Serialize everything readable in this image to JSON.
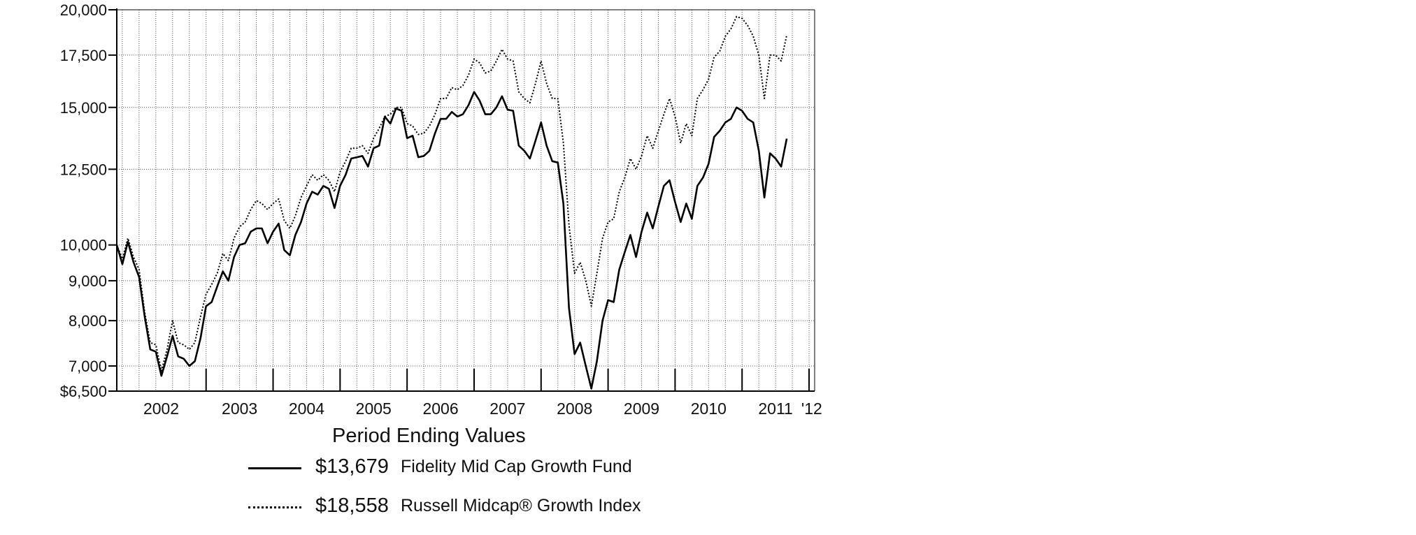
{
  "chart_data": {
    "type": "line",
    "title": "",
    "xlabel": "",
    "ylabel": "",
    "yscale": "log",
    "ylim": [
      6500,
      20000
    ],
    "y_ticks": [
      {
        "value": 20000,
        "label": "20,000"
      },
      {
        "value": 17500,
        "label": "17,500"
      },
      {
        "value": 15000,
        "label": "15,000"
      },
      {
        "value": 12500,
        "label": "12,500"
      },
      {
        "value": 10000,
        "label": "10,000"
      },
      {
        "value": 9000,
        "label": "9,000"
      },
      {
        "value": 8000,
        "label": "8,000"
      },
      {
        "value": 7000,
        "label": "7,000"
      },
      {
        "value": 6500,
        "label": "$6,500"
      }
    ],
    "x_start": 2001.667,
    "x_end": 2012.083,
    "year_boundaries": [
      2003,
      2004,
      2005,
      2006,
      2007,
      2008,
      2009,
      2010,
      2011,
      2012
    ],
    "year_labels": [
      {
        "x": 2002.33,
        "label": "2002"
      },
      {
        "x": 2003.5,
        "label": "2003"
      },
      {
        "x": 2004.5,
        "label": "2004"
      },
      {
        "x": 2005.5,
        "label": "2005"
      },
      {
        "x": 2006.5,
        "label": "2006"
      },
      {
        "x": 2007.5,
        "label": "2007"
      },
      {
        "x": 2008.5,
        "label": "2008"
      },
      {
        "x": 2009.5,
        "label": "2009"
      },
      {
        "x": 2010.5,
        "label": "2010"
      },
      {
        "x": 2011.5,
        "label": "2011"
      },
      {
        "x": 2012.04,
        "label": "'12"
      }
    ],
    "grid": true,
    "legend_position": "below",
    "legend_title": "Period Ending Values",
    "series": [
      {
        "name": "Fidelity Mid Cap Growth Fund",
        "value_label": "$13,679",
        "style": "solid",
        "color": "#000000",
        "points": [
          [
            2001.667,
            10000
          ],
          [
            2001.75,
            9450
          ],
          [
            2001.833,
            10100
          ],
          [
            2001.917,
            9500
          ],
          [
            2002.0,
            9100
          ],
          [
            2002.083,
            8100
          ],
          [
            2002.167,
            7350
          ],
          [
            2002.25,
            7300
          ],
          [
            2002.333,
            6800
          ],
          [
            2002.417,
            7200
          ],
          [
            2002.5,
            7650
          ],
          [
            2002.583,
            7200
          ],
          [
            2002.667,
            7150
          ],
          [
            2002.75,
            7000
          ],
          [
            2002.833,
            7100
          ],
          [
            2002.917,
            7600
          ],
          [
            2003.0,
            8350
          ],
          [
            2003.083,
            8450
          ],
          [
            2003.167,
            8850
          ],
          [
            2003.25,
            9250
          ],
          [
            2003.333,
            9000
          ],
          [
            2003.417,
            9650
          ],
          [
            2003.5,
            10000
          ],
          [
            2003.583,
            10050
          ],
          [
            2003.667,
            10400
          ],
          [
            2003.75,
            10500
          ],
          [
            2003.833,
            10500
          ],
          [
            2003.917,
            10050
          ],
          [
            2004.0,
            10400
          ],
          [
            2004.083,
            10650
          ],
          [
            2004.167,
            9850
          ],
          [
            2004.25,
            9700
          ],
          [
            2004.333,
            10300
          ],
          [
            2004.417,
            10700
          ],
          [
            2004.5,
            11300
          ],
          [
            2004.583,
            11700
          ],
          [
            2004.667,
            11600
          ],
          [
            2004.75,
            11900
          ],
          [
            2004.833,
            11800
          ],
          [
            2004.917,
            11150
          ],
          [
            2005.0,
            11900
          ],
          [
            2005.083,
            12300
          ],
          [
            2005.167,
            12900
          ],
          [
            2005.25,
            12950
          ],
          [
            2005.333,
            13000
          ],
          [
            2005.417,
            12600
          ],
          [
            2005.5,
            13300
          ],
          [
            2005.583,
            13400
          ],
          [
            2005.667,
            14600
          ],
          [
            2005.75,
            14300
          ],
          [
            2005.833,
            14950
          ],
          [
            2005.917,
            14850
          ],
          [
            2006.0,
            13700
          ],
          [
            2006.083,
            13800
          ],
          [
            2006.167,
            12950
          ],
          [
            2006.25,
            13000
          ],
          [
            2006.333,
            13200
          ],
          [
            2006.417,
            13900
          ],
          [
            2006.5,
            14500
          ],
          [
            2006.583,
            14500
          ],
          [
            2006.667,
            14800
          ],
          [
            2006.75,
            14600
          ],
          [
            2006.833,
            14700
          ],
          [
            2006.917,
            15100
          ],
          [
            2007.0,
            15700
          ],
          [
            2007.083,
            15300
          ],
          [
            2007.167,
            14700
          ],
          [
            2007.25,
            14700
          ],
          [
            2007.333,
            15000
          ],
          [
            2007.417,
            15500
          ],
          [
            2007.5,
            14900
          ],
          [
            2007.583,
            14850
          ],
          [
            2007.667,
            13400
          ],
          [
            2007.75,
            13200
          ],
          [
            2007.833,
            12900
          ],
          [
            2007.917,
            13600
          ],
          [
            2008.0,
            14350
          ],
          [
            2008.083,
            13400
          ],
          [
            2008.167,
            12800
          ],
          [
            2008.25,
            12750
          ],
          [
            2008.333,
            11300
          ],
          [
            2008.417,
            8300
          ],
          [
            2008.5,
            7250
          ],
          [
            2008.583,
            7500
          ],
          [
            2008.667,
            7000
          ],
          [
            2008.75,
            6550
          ],
          [
            2008.833,
            7100
          ],
          [
            2008.917,
            8000
          ],
          [
            2009.0,
            8500
          ],
          [
            2009.083,
            8450
          ],
          [
            2009.167,
            9300
          ],
          [
            2009.25,
            9800
          ],
          [
            2009.333,
            10300
          ],
          [
            2009.417,
            9650
          ],
          [
            2009.5,
            10400
          ],
          [
            2009.583,
            11000
          ],
          [
            2009.667,
            10500
          ],
          [
            2009.75,
            11200
          ],
          [
            2009.833,
            11900
          ],
          [
            2009.917,
            12100
          ],
          [
            2010.0,
            11350
          ],
          [
            2010.083,
            10700
          ],
          [
            2010.167,
            11300
          ],
          [
            2010.25,
            10800
          ],
          [
            2010.333,
            11900
          ],
          [
            2010.417,
            12200
          ],
          [
            2010.5,
            12700
          ],
          [
            2010.583,
            13750
          ],
          [
            2010.667,
            14000
          ],
          [
            2010.75,
            14350
          ],
          [
            2010.833,
            14500
          ],
          [
            2010.917,
            15000
          ],
          [
            2011.0,
            14850
          ],
          [
            2011.083,
            14500
          ],
          [
            2011.167,
            14350
          ],
          [
            2011.25,
            13200
          ],
          [
            2011.333,
            11500
          ],
          [
            2011.417,
            13100
          ],
          [
            2011.5,
            12900
          ],
          [
            2011.583,
            12600
          ],
          [
            2011.667,
            13679
          ]
        ]
      },
      {
        "name": "Russell Midcap® Growth Index",
        "value_label": "$18,558",
        "style": "dotted",
        "color": "#000000",
        "points": [
          [
            2001.667,
            10000
          ],
          [
            2001.75,
            9600
          ],
          [
            2001.833,
            10200
          ],
          [
            2001.917,
            9650
          ],
          [
            2002.0,
            9300
          ],
          [
            2002.083,
            8200
          ],
          [
            2002.167,
            7500
          ],
          [
            2002.25,
            7450
          ],
          [
            2002.333,
            6900
          ],
          [
            2002.417,
            7350
          ],
          [
            2002.5,
            8000
          ],
          [
            2002.583,
            7500
          ],
          [
            2002.667,
            7450
          ],
          [
            2002.75,
            7350
          ],
          [
            2002.833,
            7500
          ],
          [
            2002.917,
            8100
          ],
          [
            2003.0,
            8650
          ],
          [
            2003.083,
            8900
          ],
          [
            2003.167,
            9200
          ],
          [
            2003.25,
            9750
          ],
          [
            2003.333,
            9550
          ],
          [
            2003.417,
            10200
          ],
          [
            2003.5,
            10550
          ],
          [
            2003.583,
            10700
          ],
          [
            2003.667,
            11100
          ],
          [
            2003.75,
            11400
          ],
          [
            2003.833,
            11300
          ],
          [
            2003.917,
            11100
          ],
          [
            2004.0,
            11300
          ],
          [
            2004.083,
            11450
          ],
          [
            2004.167,
            10750
          ],
          [
            2004.25,
            10500
          ],
          [
            2004.333,
            10900
          ],
          [
            2004.417,
            11500
          ],
          [
            2004.5,
            11900
          ],
          [
            2004.583,
            12300
          ],
          [
            2004.667,
            12100
          ],
          [
            2004.75,
            12300
          ],
          [
            2004.833,
            12100
          ],
          [
            2004.917,
            11700
          ],
          [
            2005.0,
            12400
          ],
          [
            2005.083,
            12800
          ],
          [
            2005.167,
            13300
          ],
          [
            2005.25,
            13300
          ],
          [
            2005.333,
            13400
          ],
          [
            2005.417,
            13100
          ],
          [
            2005.5,
            13700
          ],
          [
            2005.583,
            14100
          ],
          [
            2005.667,
            14600
          ],
          [
            2005.75,
            14700
          ],
          [
            2005.833,
            15000
          ],
          [
            2005.917,
            15000
          ],
          [
            2006.0,
            14300
          ],
          [
            2006.083,
            14200
          ],
          [
            2006.167,
            13850
          ],
          [
            2006.25,
            13900
          ],
          [
            2006.333,
            14200
          ],
          [
            2006.417,
            14700
          ],
          [
            2006.5,
            15400
          ],
          [
            2006.583,
            15400
          ],
          [
            2006.667,
            15900
          ],
          [
            2006.75,
            15800
          ],
          [
            2006.833,
            16000
          ],
          [
            2006.917,
            16500
          ],
          [
            2007.0,
            17300
          ],
          [
            2007.083,
            17100
          ],
          [
            2007.167,
            16600
          ],
          [
            2007.25,
            16700
          ],
          [
            2007.333,
            17200
          ],
          [
            2007.417,
            17800
          ],
          [
            2007.5,
            17300
          ],
          [
            2007.583,
            17200
          ],
          [
            2007.667,
            15700
          ],
          [
            2007.75,
            15400
          ],
          [
            2007.833,
            15200
          ],
          [
            2007.917,
            16100
          ],
          [
            2008.0,
            17200
          ],
          [
            2008.083,
            16100
          ],
          [
            2008.167,
            15400
          ],
          [
            2008.25,
            15400
          ],
          [
            2008.333,
            13500
          ],
          [
            2008.417,
            10600
          ],
          [
            2008.5,
            9200
          ],
          [
            2008.583,
            9500
          ],
          [
            2008.667,
            9000
          ],
          [
            2008.75,
            8350
          ],
          [
            2008.833,
            9200
          ],
          [
            2008.917,
            10200
          ],
          [
            2009.0,
            10700
          ],
          [
            2009.083,
            10800
          ],
          [
            2009.167,
            11700
          ],
          [
            2009.25,
            12200
          ],
          [
            2009.333,
            12900
          ],
          [
            2009.417,
            12500
          ],
          [
            2009.5,
            13000
          ],
          [
            2009.583,
            13800
          ],
          [
            2009.667,
            13300
          ],
          [
            2009.75,
            14000
          ],
          [
            2009.833,
            14700
          ],
          [
            2009.917,
            15400
          ],
          [
            2010.0,
            14600
          ],
          [
            2010.083,
            13500
          ],
          [
            2010.167,
            14300
          ],
          [
            2010.25,
            13800
          ],
          [
            2010.333,
            15400
          ],
          [
            2010.417,
            15800
          ],
          [
            2010.5,
            16300
          ],
          [
            2010.583,
            17400
          ],
          [
            2010.667,
            17700
          ],
          [
            2010.75,
            18500
          ],
          [
            2010.833,
            18900
          ],
          [
            2010.917,
            19600
          ],
          [
            2011.0,
            19500
          ],
          [
            2011.083,
            19100
          ],
          [
            2011.167,
            18500
          ],
          [
            2011.25,
            17500
          ],
          [
            2011.333,
            15400
          ],
          [
            2011.417,
            17500
          ],
          [
            2011.5,
            17500
          ],
          [
            2011.583,
            17200
          ],
          [
            2011.667,
            18558
          ]
        ]
      }
    ]
  }
}
